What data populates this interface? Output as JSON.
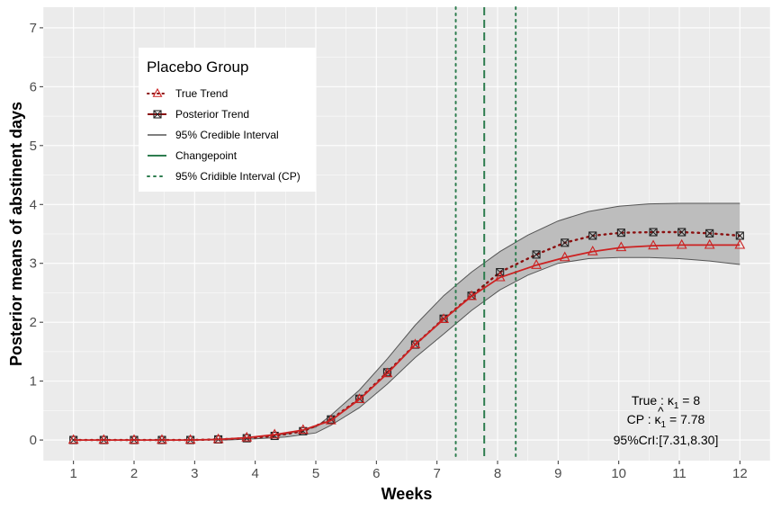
{
  "chart_data": {
    "type": "line",
    "xlabel": "Weeks",
    "ylabel": "Posterior means of abstinent days",
    "xlim": [
      0.5,
      12.5
    ],
    "ylim": [
      -0.35,
      7.35
    ],
    "xticks": [
      1,
      2,
      3,
      4,
      5,
      6,
      7,
      8,
      9,
      10,
      11,
      12
    ],
    "yticks": [
      0,
      1,
      2,
      3,
      4,
      5,
      6,
      7
    ],
    "grid": true,
    "legend": {
      "title": "Placebo Group",
      "placement": "top-left",
      "entries": [
        {
          "key": "true",
          "label": "True Trend"
        },
        {
          "key": "post",
          "label": "Posterior Trend"
        },
        {
          "key": "ci",
          "label": "95% Credible Interval"
        },
        {
          "key": "cp",
          "label": "Changepoint"
        },
        {
          "key": "cpci",
          "label": "95% Cridible Interval (CP)"
        }
      ]
    },
    "x": [
      1,
      1.5,
      2,
      2.46,
      2.93,
      3.39,
      3.86,
      4.32,
      4.79,
      5.25,
      5.72,
      6.18,
      6.64,
      7.11,
      7.57,
      8.04,
      8.5,
      8.64,
      9.11,
      9.57,
      10.04,
      10.5,
      10.57,
      11.04,
      11.5,
      12
    ],
    "series": [
      {
        "name": "True Trend",
        "line": "solid",
        "color": "#cc2222",
        "marker": "triangle",
        "x": [
          1,
          1.5,
          2,
          2.46,
          2.93,
          3.39,
          3.86,
          4.32,
          4.79,
          5.25,
          5.72,
          6.18,
          6.64,
          7.11,
          7.57,
          8.04,
          8.64,
          9.11,
          9.57,
          10.04,
          10.57,
          11.04,
          11.5,
          12
        ],
        "values": [
          0,
          0,
          0,
          0,
          0,
          0.01,
          0.04,
          0.09,
          0.17,
          0.33,
          0.69,
          1.13,
          1.62,
          2.05,
          2.44,
          2.76,
          2.97,
          3.1,
          3.2,
          3.27,
          3.3,
          3.31,
          3.31,
          3.31
        ]
      },
      {
        "name": "Posterior Trend",
        "line": "dotted",
        "color": "#8b1010",
        "marker": "square-cross",
        "x": [
          1,
          1.5,
          2,
          2.46,
          2.93,
          3.39,
          3.86,
          4.32,
          4.79,
          5.25,
          5.72,
          6.18,
          6.64,
          7.11,
          7.57,
          8.04,
          8.64,
          9.11,
          9.57,
          10.04,
          10.57,
          11.04,
          11.5,
          12
        ],
        "values": [
          0,
          0,
          0,
          0,
          0,
          0.01,
          0.03,
          0.07,
          0.15,
          0.35,
          0.7,
          1.15,
          1.62,
          2.06,
          2.45,
          2.85,
          3.15,
          3.35,
          3.47,
          3.52,
          3.53,
          3.53,
          3.51,
          3.47
        ]
      }
    ],
    "ci": {
      "x": [
        1,
        2,
        3,
        3.5,
        4,
        4.5,
        5,
        5.25,
        5.72,
        6.18,
        6.64,
        7.11,
        7.57,
        8.04,
        8.5,
        9,
        9.5,
        10,
        10.5,
        11,
        11.5,
        12
      ],
      "lower": [
        0,
        0,
        0,
        0,
        0.02,
        0.05,
        0.12,
        0.25,
        0.55,
        0.95,
        1.4,
        1.8,
        2.2,
        2.55,
        2.8,
        3.0,
        3.08,
        3.1,
        3.1,
        3.08,
        3.04,
        2.98
      ],
      "upper": [
        0,
        0,
        0,
        0.01,
        0.05,
        0.1,
        0.22,
        0.42,
        0.85,
        1.38,
        1.95,
        2.45,
        2.85,
        3.2,
        3.48,
        3.72,
        3.88,
        3.97,
        4.01,
        4.02,
        4.02,
        4.02
      ]
    },
    "changepoint": {
      "estimate": 7.78,
      "lower": 7.31,
      "upper": 8.3,
      "true": 8
    },
    "annotation": {
      "line1_prefix": "True : ",
      "line1_symbol": "κ",
      "line1_sub": "1",
      "line1_value": " = 8",
      "line2_prefix": "CP : ",
      "line2_hat": "^",
      "line2_symbol": "κ",
      "line2_sub": "1",
      "line2_value": " = 7.78",
      "line3": "95%CrI:[7.31,8.30]"
    },
    "colors": {
      "panel": "#ebebeb",
      "grid": "#ffffff",
      "ribbon": "#bdbdbd",
      "ribbon_edge": "#555555",
      "true_line": "#cc2222",
      "post_line": "#8b1010",
      "changepoint": "#2e7d4f"
    }
  }
}
